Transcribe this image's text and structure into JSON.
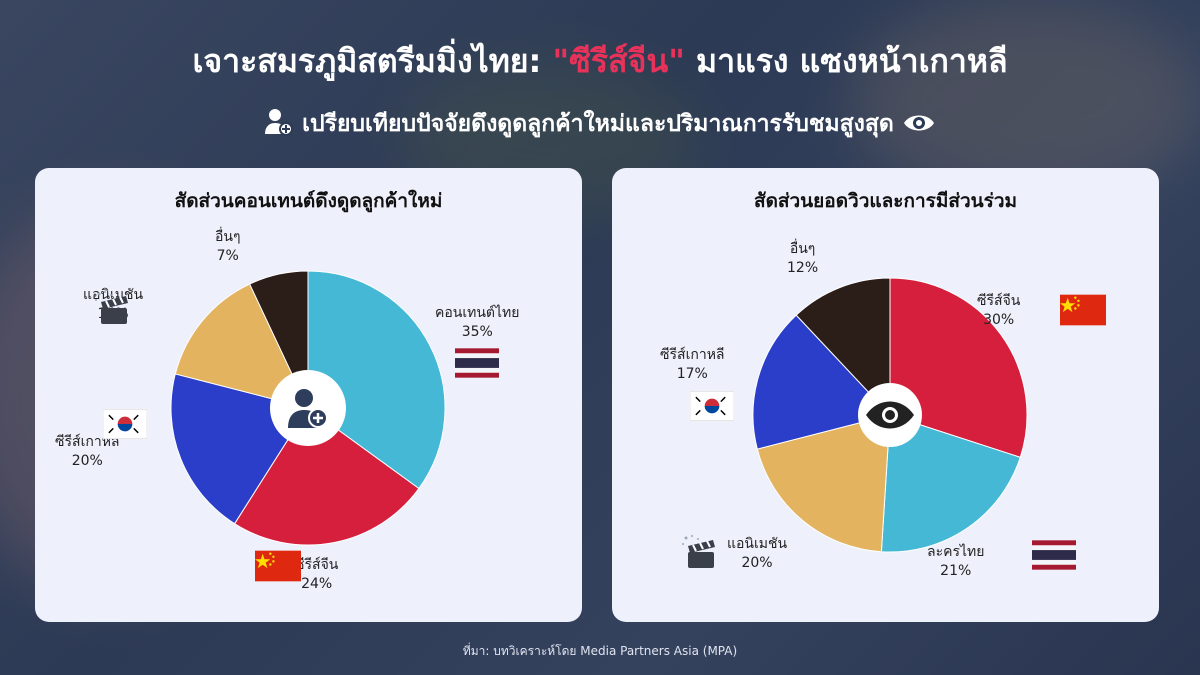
{
  "header": {
    "title_pre": "เจาะสมรภูมิสตรีมมิ่งไทย: ",
    "title_highlight": "\"ซีรีส์จีน\"",
    "title_post": " มาแรง แซงหน้าเกาหลี",
    "subtitle": "เปรียบเทียบปัจจัยดึงดูดลูกค้าใหม่และปริมาณการรับชมสูงสุด",
    "subtitle_icons": [
      "user-plus-icon",
      "eye-icon"
    ]
  },
  "chart_data": [
    {
      "type": "pie",
      "title": "สัดส่วนคอนเทนต์ดึงดูดลูกค้าใหม่",
      "center_icon": "user-plus-icon",
      "labels": [
        "คอนเทนต์ไทย",
        "ซีรีส์จีน",
        "ซีรีส์เกาหลี",
        "แอนิเมชัน",
        "อื่นๆ"
      ],
      "values": [
        35,
        24,
        20,
        14,
        7
      ],
      "value_labels": [
        "35%",
        "24%",
        "20%",
        "14%",
        "7%"
      ],
      "colors": [
        "#45b8d6",
        "#d61f3c",
        "#2b3ec9",
        "#e3b35f",
        "#2b1d18"
      ],
      "icons": [
        "thailand-flag-icon",
        "china-flag-icon",
        "korea-flag-icon",
        "clapperboard-icon",
        ""
      ]
    },
    {
      "type": "pie",
      "title": "สัดส่วนยอดวิวและการมีส่วนร่วม",
      "center_icon": "eye-icon",
      "labels": [
        "ซีรีส์จีน",
        "ละครไทย",
        "แอนิเมชัน",
        "ซีรีส์เกาหลี",
        "อื่นๆ"
      ],
      "values": [
        30,
        21,
        20,
        17,
        12
      ],
      "value_labels": [
        "30%",
        "21%",
        "20%",
        "17%",
        "12%"
      ],
      "colors": [
        "#d61f3c",
        "#45b8d6",
        "#e3b35f",
        "#2b3ec9",
        "#2b1d18"
      ],
      "icons": [
        "china-flag-icon",
        "thailand-flag-icon",
        "clapperboard-icon",
        "korea-flag-icon",
        ""
      ]
    }
  ],
  "footer": {
    "source": "ที่มา: บทวิเคราะห์โดย Media Partners Asia (MPA)"
  }
}
